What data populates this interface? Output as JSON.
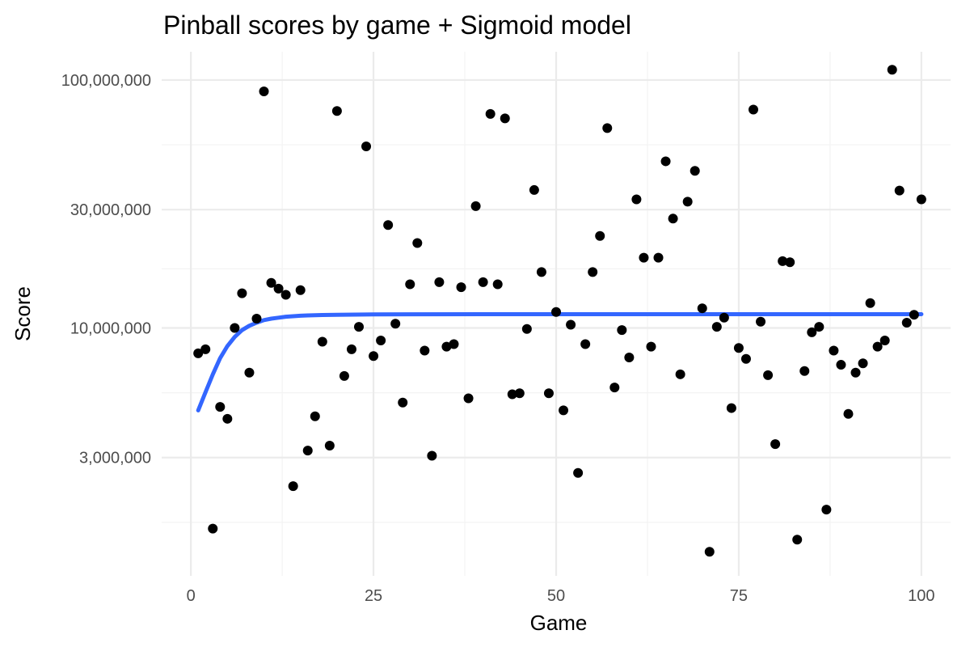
{
  "chart_data": {
    "type": "scatter",
    "title": "Pinball scores by game + Sigmoid model",
    "xlabel": "Game",
    "ylabel": "Score",
    "xlim": [
      -4,
      104
    ],
    "ylim": [
      1000000,
      130000000
    ],
    "y_scale": "log10",
    "grid": true,
    "legend": "none",
    "x_ticks": [
      0,
      25,
      50,
      75,
      100
    ],
    "x_tick_labels": [
      "0",
      "25",
      "50",
      "75",
      "100"
    ],
    "y_ticks": [
      3000000,
      10000000,
      30000000,
      100000000
    ],
    "y_tick_labels": [
      "3,000,000",
      "10,000,000",
      "30,000,000",
      "100,000,000"
    ],
    "series": [
      {
        "kind": "points",
        "color": "#000000",
        "x": [
          1,
          2,
          3,
          4,
          5,
          6,
          7,
          8,
          9,
          10,
          11,
          12,
          13,
          14,
          15,
          16,
          17,
          18,
          19,
          20,
          21,
          22,
          23,
          24,
          25,
          26,
          27,
          28,
          29,
          30,
          31,
          32,
          33,
          34,
          35,
          36,
          37,
          38,
          39,
          40,
          41,
          42,
          43,
          44,
          45,
          46,
          47,
          48,
          49,
          50,
          51,
          52,
          53,
          54,
          55,
          56,
          57,
          58,
          59,
          60,
          61,
          62,
          63,
          64,
          65,
          66,
          67,
          68,
          69,
          70,
          71,
          72,
          73,
          74,
          75,
          76,
          77,
          78,
          79,
          80,
          81,
          82,
          83,
          84,
          85,
          86,
          87,
          88,
          89,
          90,
          91,
          92,
          93,
          94,
          95,
          96,
          97,
          98,
          99,
          100
        ],
        "y": [
          7900000,
          8200000,
          1550000,
          4800000,
          4300000,
          10000000,
          13800000,
          6600000,
          10900000,
          90000000,
          15200000,
          14400000,
          13600000,
          2300000,
          14200000,
          3200000,
          4400000,
          8800000,
          3350000,
          75000000,
          6400000,
          8200000,
          10100000,
          54000000,
          7700000,
          8900000,
          26000000,
          10400000,
          5000000,
          15000000,
          22000000,
          8100000,
          3050000,
          15300000,
          8400000,
          8600000,
          14600000,
          5200000,
          31000000,
          15300000,
          73000000,
          15000000,
          70000000,
          5400000,
          5450000,
          9900000,
          36000000,
          16800000,
          5450000,
          11600000,
          4650000,
          10300000,
          2600000,
          8600000,
          16800000,
          23500000,
          64000000,
          5750000,
          9800000,
          7600000,
          33000000,
          19200000,
          8400000,
          19200000,
          47000000,
          27600000,
          6500000,
          32300000,
          43000000,
          12000000,
          1250000,
          10100000,
          11000000,
          4750000,
          8300000,
          7500000,
          76000000,
          10600000,
          6450000,
          3400000,
          18600000,
          18400000,
          1400000,
          6700000,
          9600000,
          10100000,
          1850000,
          8100000,
          7100000,
          4500000,
          6600000,
          7200000,
          12600000,
          8400000,
          8900000,
          110000000,
          35800000,
          10500000,
          11300000,
          33000000
        ]
      },
      {
        "kind": "sigmoid-fit",
        "color": "#3366ff",
        "x": [
          1,
          2,
          3,
          4,
          5,
          6,
          7,
          8,
          9,
          10,
          11,
          12,
          13,
          14,
          15,
          16,
          17,
          18,
          19,
          20,
          25,
          30,
          40,
          50,
          60,
          70,
          80,
          90,
          100
        ],
        "y": [
          4650000,
          5500000,
          6500000,
          7550000,
          8450000,
          9200000,
          9800000,
          10200000,
          10500000,
          10750000,
          10900000,
          11000000,
          11100000,
          11150000,
          11200000,
          11230000,
          11250000,
          11270000,
          11280000,
          11300000,
          11330000,
          11350000,
          11360000,
          11360000,
          11360000,
          11360000,
          11360000,
          11360000,
          11360000
        ]
      }
    ]
  }
}
